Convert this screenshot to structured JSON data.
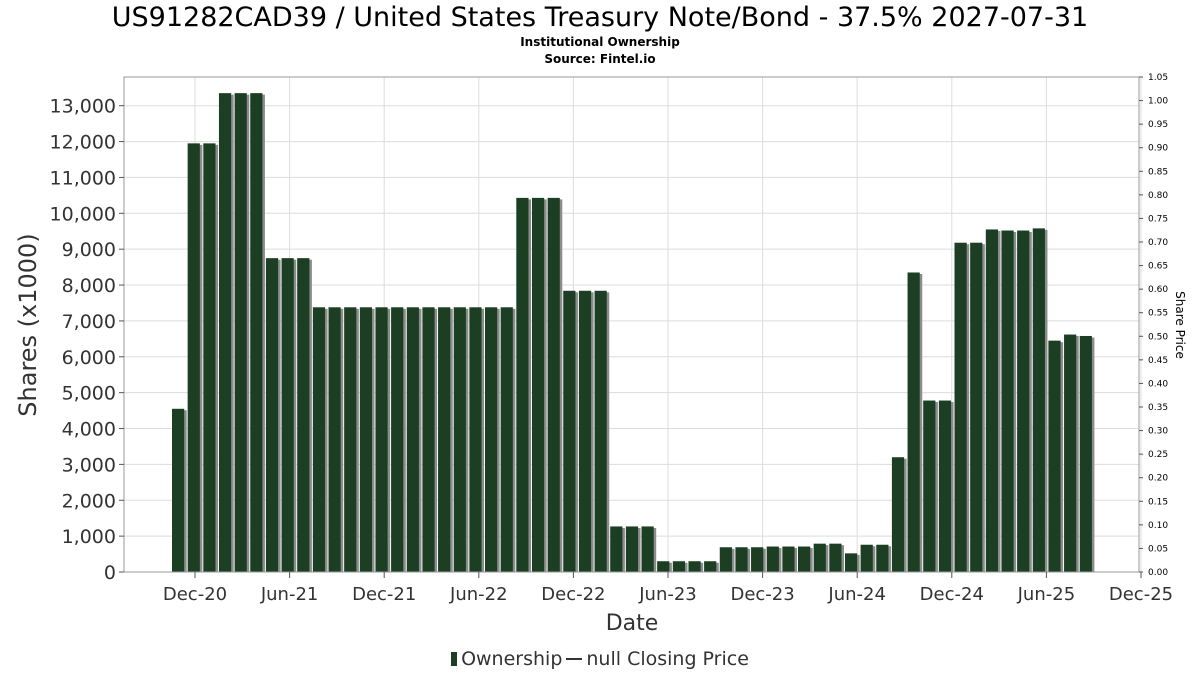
{
  "title": "US91282CAD39 / United States Treasury Note/Bond - 37.5% 2027-07-31",
  "subtitle1": "Institutional Ownership",
  "subtitle2": "Source: Fintel.io",
  "legend": {
    "ownership": "Ownership",
    "closing_price": "null Closing Price"
  },
  "colors": {
    "bar": "#1c3f24",
    "bar_shadow": "#8c8c8c",
    "grid": "#dddddd",
    "axis": "#999999"
  },
  "chart_data": {
    "type": "bar",
    "xlabel": "Date",
    "ylabel": "Shares (x1000)",
    "y2label": "Share Price",
    "ylim": [
      0,
      13800
    ],
    "y2lim": [
      0,
      1.05
    ],
    "yticks": [
      0,
      1000,
      2000,
      3000,
      4000,
      5000,
      6000,
      7000,
      8000,
      9000,
      10000,
      11000,
      12000,
      13000
    ],
    "ytick_labels": [
      "0",
      "1,000",
      "2,000",
      "3,000",
      "4,000",
      "5,000",
      "6,000",
      "7,000",
      "8,000",
      "9,000",
      "10,000",
      "11,000",
      "12,000",
      "13,000"
    ],
    "y2ticks": [
      0,
      0.05,
      0.1,
      0.15,
      0.2,
      0.25,
      0.3,
      0.35,
      0.4,
      0.45,
      0.5,
      0.55,
      0.6,
      0.65,
      0.7,
      0.75,
      0.8,
      0.85,
      0.9,
      0.95,
      1.0,
      1.05
    ],
    "y2tick_labels": [
      "0.00",
      "0.05",
      "0.10",
      "0.15",
      "0.20",
      "0.25",
      "0.30",
      "0.35",
      "0.40",
      "0.45",
      "0.50",
      "0.55",
      "0.60",
      "0.65",
      "0.70",
      "0.75",
      "0.80",
      "0.85",
      "0.90",
      "0.95",
      "1.00",
      "1.05"
    ],
    "xticks": [
      "Dec-20",
      "Jun-21",
      "Dec-21",
      "Jun-22",
      "Dec-22",
      "Jun-23",
      "Dec-23",
      "Jun-24",
      "Dec-24",
      "Jun-25",
      "Dec-25"
    ],
    "grid": true,
    "legend_position": "bottom",
    "series": [
      {
        "name": "Ownership",
        "values": [
          4550,
          11950,
          11950,
          13350,
          13350,
          13350,
          8750,
          8750,
          8750,
          7380,
          7380,
          7380,
          7380,
          7380,
          7380,
          7380,
          7380,
          7380,
          7380,
          7380,
          7380,
          7380,
          10430,
          10430,
          10430,
          7840,
          7840,
          7840,
          1270,
          1270,
          1270,
          300,
          300,
          300,
          300,
          690,
          690,
          690,
          710,
          710,
          710,
          790,
          790,
          520,
          760,
          760,
          3200,
          8350,
          4780,
          4780,
          9180,
          9180,
          9550,
          9520,
          9520,
          9580,
          6450,
          6620,
          6580
        ]
      }
    ]
  }
}
